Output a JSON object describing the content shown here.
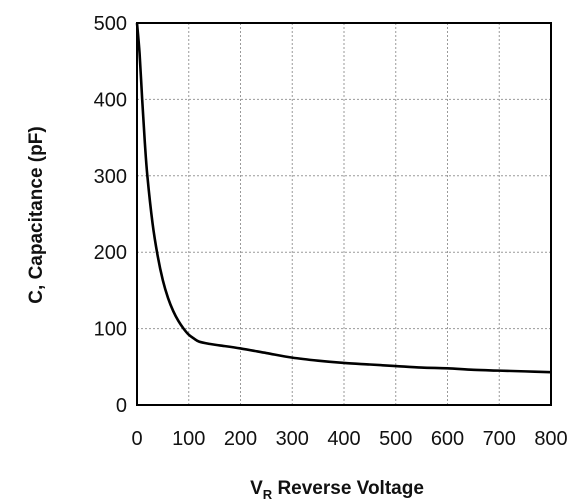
{
  "chart_data": {
    "type": "line",
    "title": "",
    "xlabel_main": "V",
    "xlabel_sub": "R",
    "xlabel_rest": " Reverse Voltage",
    "ylabel": "C, Capacitance (pF)",
    "xlim": [
      0,
      800
    ],
    "ylim": [
      0,
      500
    ],
    "x_ticks": [
      0,
      100,
      200,
      300,
      400,
      500,
      600,
      700,
      800
    ],
    "y_ticks": [
      0,
      100,
      200,
      300,
      400,
      500
    ],
    "grid": true,
    "series": [
      {
        "x": [
          0,
          5,
          10,
          15,
          20,
          30,
          40,
          50,
          60,
          70,
          80,
          90,
          100,
          110,
          120,
          140,
          160,
          200,
          250,
          300,
          350,
          400,
          450,
          500,
          550,
          600,
          650,
          700,
          750,
          800
        ],
        "y": [
          500,
          460,
          400,
          345,
          300,
          238,
          195,
          163,
          140,
          123,
          110,
          100,
          92,
          87,
          83,
          80,
          78,
          74,
          68,
          62,
          58,
          55,
          53,
          51,
          49,
          48,
          46,
          45,
          44,
          43
        ],
        "color": "#000000"
      }
    ]
  }
}
